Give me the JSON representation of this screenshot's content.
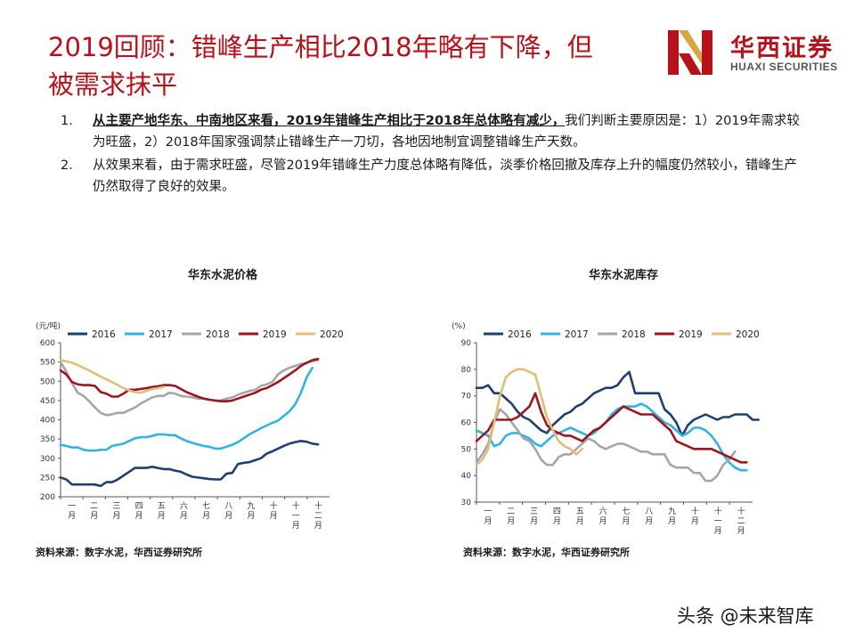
{
  "page": {
    "title": "2019回顾：错峰生产相比2018年略有下降，但被需求抹平",
    "watermark": "头条 @未来智库"
  },
  "logo": {
    "cn": "华西证券",
    "en": "HUAXI SECURITIES",
    "brand_color": "#b5121b"
  },
  "bullets": [
    {
      "num": "1.",
      "bold": "从主要产地华东、中南地区来看，2019年错峰生产相比于2018年总体略有减少，",
      "text": "我们判断主要原因是：1）2019年需求较为旺盛，2）2018年国家强调禁止错峰生产一刀切，各地因地制宜调整错峰生产天数。"
    },
    {
      "num": "2.",
      "bold": "",
      "text": "从效果来看，由于需求旺盛，尽管2019年错峰生产力度总体略有降低，淡季价格回撤及库存上升的幅度仍然较小，错峰生产仍然取得了良好的效果。"
    }
  ],
  "sources": {
    "left": "资料来源：数字水泥，华西证券研究所",
    "right": "资料来源：数字水泥，华西证券研究所"
  },
  "chart_data": [
    {
      "type": "line",
      "title": "华东水泥价格",
      "ylabel": "(元/吨)",
      "ylim": [
        200,
        600
      ],
      "yticks": [
        200,
        250,
        300,
        350,
        400,
        450,
        500,
        550,
        600
      ],
      "xticks": [
        "一月",
        "二月",
        "三月",
        "四月",
        "五月",
        "六月",
        "七月",
        "八月",
        "九月",
        "十月",
        "十一月",
        "十二月"
      ],
      "grid": false,
      "legend": "top",
      "series": [
        {
          "name": "2016",
          "color": "#1f3f6e",
          "values": [
            250,
            245,
            232,
            232,
            232,
            232,
            232,
            228,
            238,
            238,
            245,
            255,
            265,
            275,
            275,
            275,
            278,
            275,
            272,
            272,
            268,
            265,
            258,
            252,
            250,
            248,
            246,
            245,
            245,
            260,
            262,
            285,
            288,
            290,
            295,
            300,
            312,
            318,
            325,
            332,
            338,
            342,
            345,
            343,
            338,
            336
          ]
        },
        {
          "name": "2017",
          "color": "#33b3e0",
          "values": [
            335,
            332,
            328,
            328,
            322,
            320,
            320,
            322,
            322,
            332,
            335,
            338,
            345,
            352,
            355,
            355,
            358,
            362,
            362,
            360,
            360,
            352,
            345,
            340,
            336,
            332,
            330,
            325,
            325,
            330,
            335,
            342,
            352,
            362,
            370,
            378,
            385,
            392,
            398,
            410,
            422,
            440,
            470,
            510,
            535
          ]
        },
        {
          "name": "2018",
          "color": "#a6a6a6",
          "values": [
            550,
            525,
            495,
            470,
            462,
            448,
            432,
            418,
            412,
            414,
            418,
            418,
            425,
            432,
            442,
            450,
            458,
            462,
            462,
            470,
            468,
            462,
            460,
            458,
            455,
            455,
            452,
            450,
            450,
            455,
            458,
            465,
            470,
            475,
            478,
            488,
            492,
            498,
            518,
            528,
            535,
            540,
            545,
            548,
            552,
            555
          ]
        },
        {
          "name": "2019",
          "color": "#9c1620",
          "values": [
            528,
            518,
            498,
            492,
            490,
            490,
            488,
            472,
            468,
            460,
            460,
            468,
            478,
            478,
            480,
            482,
            485,
            487,
            490,
            490,
            488,
            480,
            472,
            466,
            460,
            455,
            452,
            450,
            448,
            448,
            450,
            455,
            460,
            465,
            470,
            478,
            482,
            490,
            498,
            508,
            518,
            528,
            540,
            548,
            555,
            558
          ]
        },
        {
          "name": "2020",
          "color": "#e0bd7a",
          "values": [
            555,
            552,
            548,
            542,
            535,
            528,
            520,
            512,
            505,
            498,
            490,
            482,
            476,
            472,
            470,
            475,
            480,
            482,
            485
          ]
        }
      ]
    },
    {
      "type": "line",
      "title": "华东水泥库存",
      "ylabel": "(%)",
      "ylim": [
        30,
        90
      ],
      "yticks": [
        30,
        40,
        50,
        60,
        70,
        80,
        90
      ],
      "xticks": [
        "一月",
        "二月",
        "三月",
        "四月",
        "五月",
        "六月",
        "七月",
        "八月",
        "九月",
        "十月",
        "十一月",
        "十二月"
      ],
      "grid": false,
      "legend": "top",
      "series": [
        {
          "name": "2016",
          "color": "#1f3f6e",
          "values": [
            73,
            73,
            74,
            71,
            71,
            69,
            67,
            64,
            62,
            61,
            59,
            57,
            56,
            59,
            61,
            63,
            64,
            66,
            67,
            69,
            71,
            72,
            73,
            73,
            74,
            77,
            79,
            71,
            71,
            71,
            71,
            71,
            65,
            63,
            60,
            55,
            59,
            61,
            62,
            63,
            62,
            61,
            62,
            62,
            63,
            63,
            63,
            61,
            61
          ]
        },
        {
          "name": "2017",
          "color": "#33b3e0",
          "values": [
            57,
            56,
            55,
            51,
            52,
            55,
            56,
            56,
            55,
            54,
            52,
            51,
            53,
            55,
            56,
            57,
            58,
            57,
            56,
            55,
            56,
            58,
            60,
            63,
            65,
            66,
            66,
            66,
            67,
            66,
            64,
            62,
            60,
            59,
            57,
            55,
            56,
            58,
            58,
            57,
            55,
            52,
            48,
            45,
            43,
            42,
            42
          ]
        },
        {
          "name": "2018",
          "color": "#a6a6a6",
          "values": [
            45,
            48,
            52,
            60,
            65,
            63,
            60,
            57,
            54,
            53,
            50,
            46,
            44,
            44,
            47,
            48,
            48,
            50,
            52,
            54,
            53,
            51,
            50,
            51,
            52,
            52,
            51,
            50,
            49,
            49,
            48,
            48,
            48,
            44,
            43,
            43,
            43,
            41,
            41,
            38,
            38,
            40,
            44,
            46,
            49
          ]
        },
        {
          "name": "2019",
          "color": "#9c1620",
          "values": [
            53,
            55,
            57,
            61,
            61,
            61,
            61,
            62,
            64,
            66,
            71,
            64,
            59,
            57,
            56,
            55,
            55,
            54,
            53,
            55,
            57,
            58,
            60,
            62,
            64,
            66,
            65,
            64,
            63,
            63,
            63,
            61,
            59,
            57,
            53,
            52,
            51,
            50,
            50,
            50,
            50,
            49,
            48,
            47,
            46,
            45,
            45
          ]
        },
        {
          "name": "2020",
          "color": "#e0bd7a",
          "values": [
            44,
            46,
            50,
            60,
            70,
            77,
            79,
            80,
            80,
            79,
            78,
            70,
            62,
            57,
            53,
            51,
            50,
            48,
            50
          ]
        }
      ]
    }
  ]
}
